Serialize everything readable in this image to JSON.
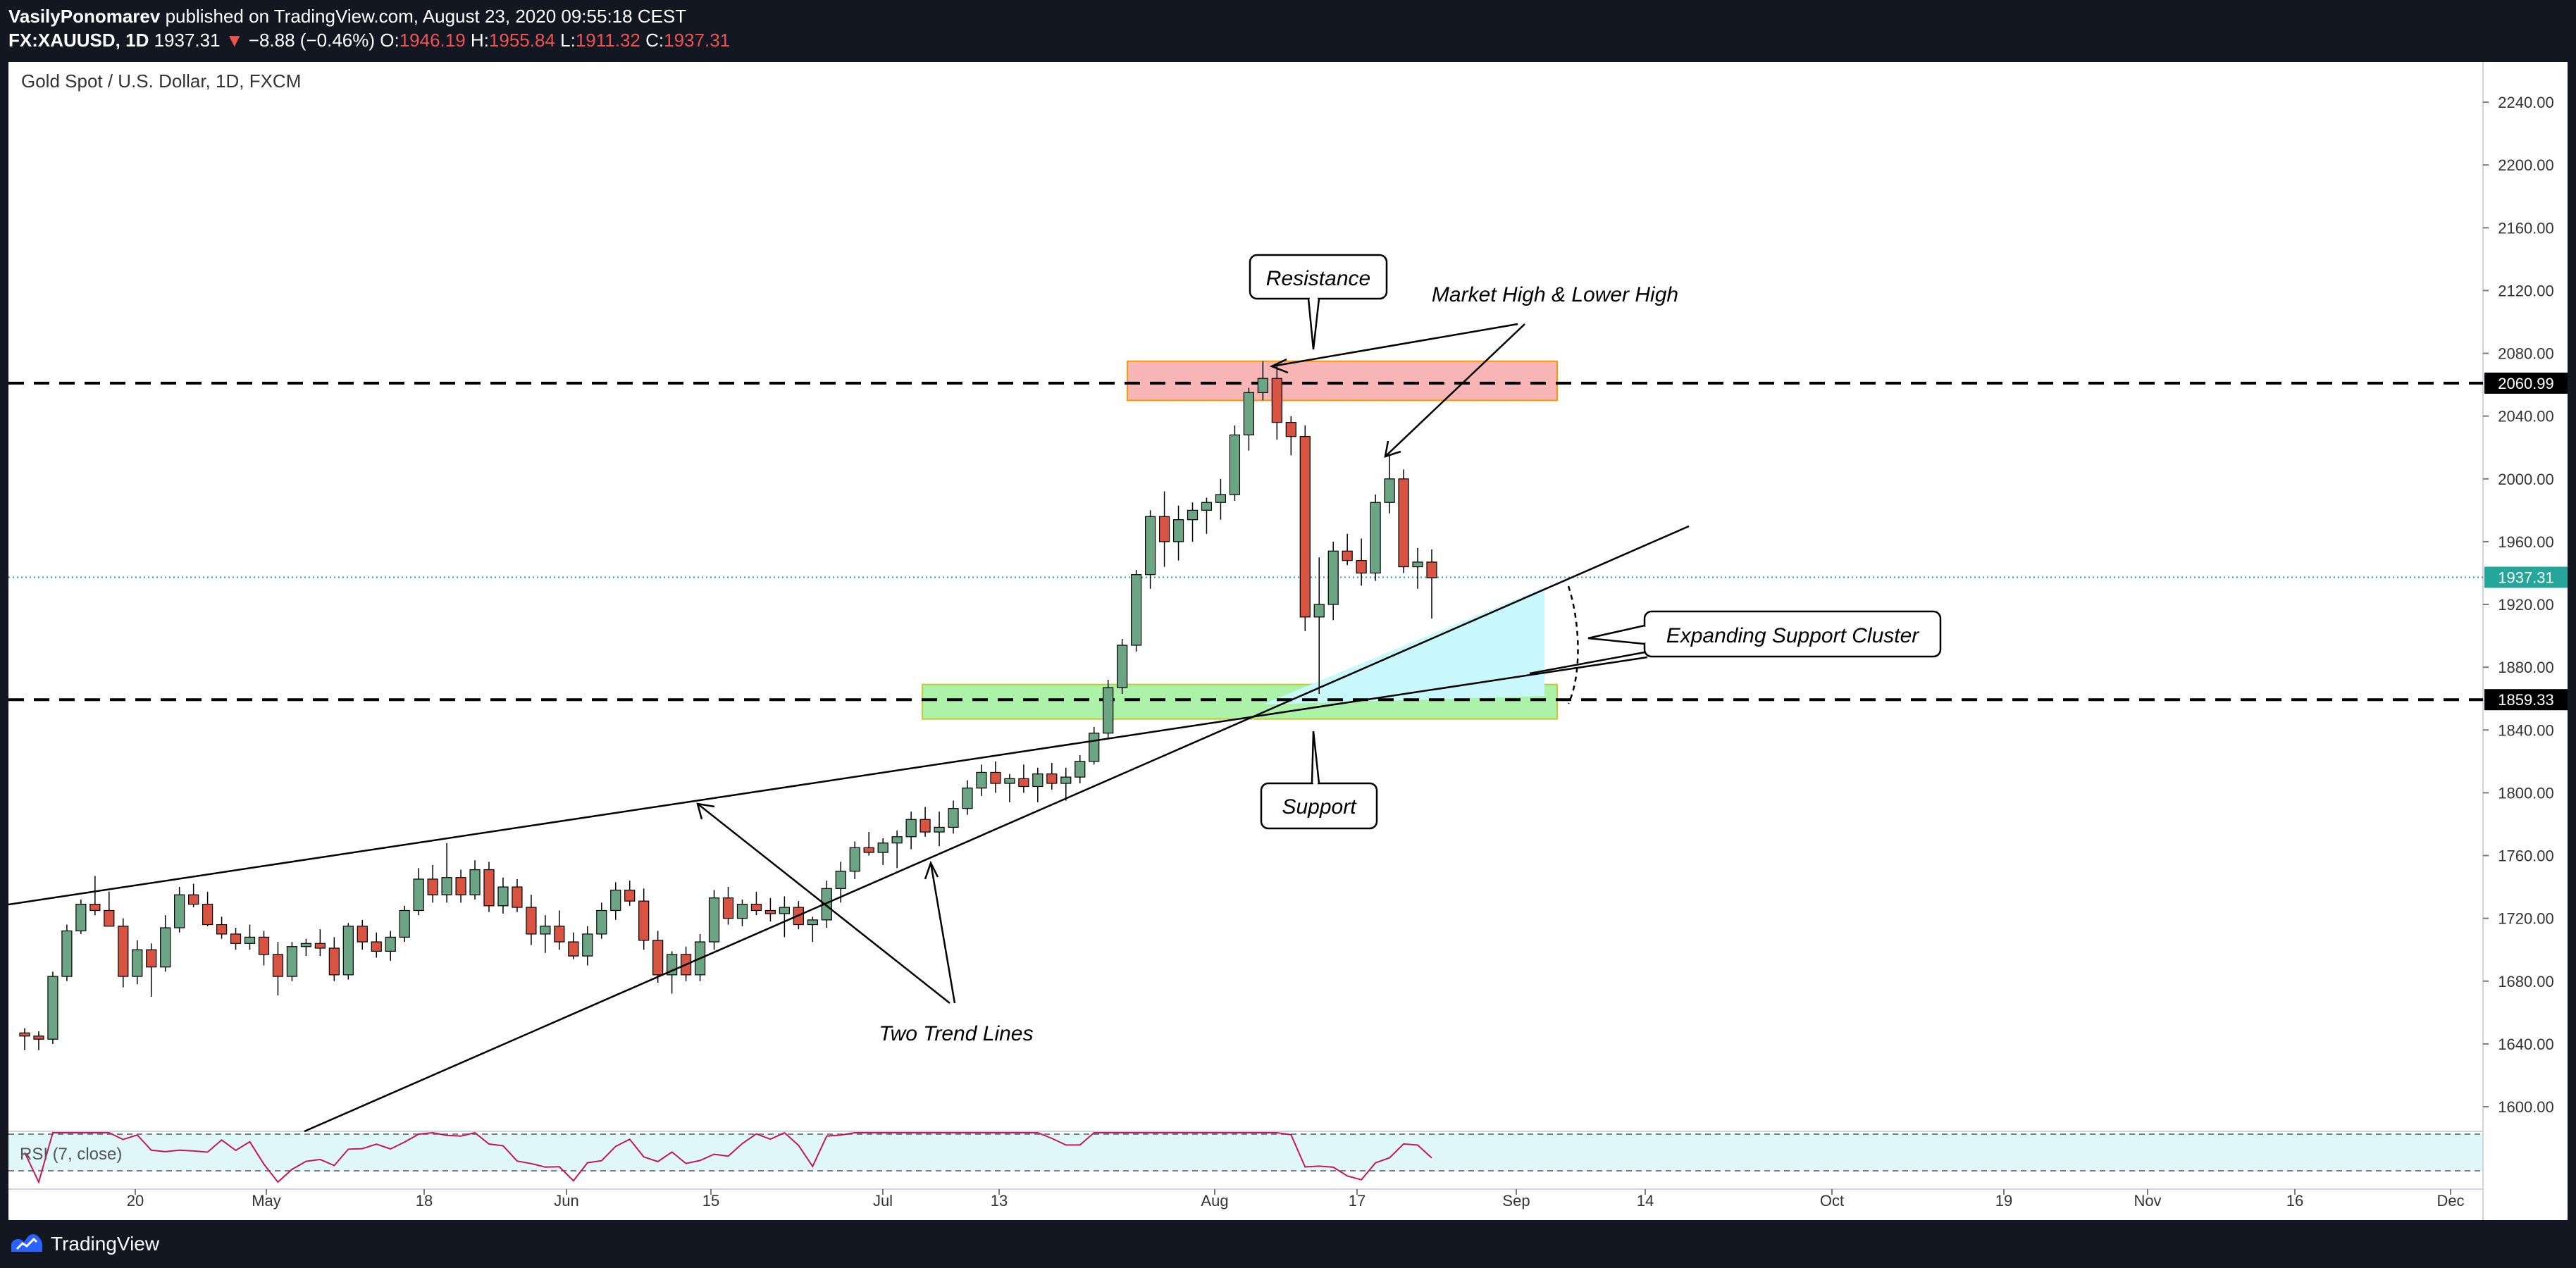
{
  "header": {
    "author": "VasilyPonomarev",
    "published_text": "published on TradingView.com, August 23, 2020 09:55:18 CEST",
    "symbol": "FX:XAUUSD, 1D",
    "last_price": "1937.31",
    "change": "−8.88 (−0.46%)",
    "open_label": "O:",
    "open": "1946.19",
    "high_label": "H:",
    "high": "1955.84",
    "low_label": "L:",
    "low": "1911.32",
    "close_label": "C:",
    "close": "1937.31"
  },
  "chart_title": "Gold Spot / U.S. Dollar, 1D, FXCM",
  "annotations": {
    "resistance": "Resistance",
    "market_high": "Market High & Lower High",
    "expanding": "Expanding Support Cluster",
    "support": "Support",
    "two_trend": "Two Trend Lines"
  },
  "rsi_label": "RSI (7, close)",
  "price_tags": {
    "upper": "2060.99",
    "current": "1937.31",
    "lower": "1859.33"
  },
  "colors": {
    "bull": "#6ba583",
    "bear": "#d75442",
    "resistance_zone": "#f7a8a8",
    "support_zone": "#9ef09a",
    "cluster": "#c8f8fb",
    "current_tag": "#26a69a",
    "rsi_line": "#c2185b",
    "rsi_band": "#e0f7fa"
  },
  "footer": {
    "brand": "TradingView",
    "logo_icon": "tradingview-logo-icon"
  },
  "chart_data": {
    "type": "candlestick",
    "title": "Gold Spot / U.S. Dollar, 1D, FXCM",
    "y_ticks": [
      1600,
      1640,
      1680,
      1720,
      1760,
      1800,
      1840,
      1880,
      1920,
      1960,
      2000,
      2040,
      2080,
      2120,
      2160,
      2200,
      2240
    ],
    "y_tick_labels": [
      "1600.00",
      "1640.00",
      "1680.00",
      "1720.00",
      "1760.00",
      "1800.00",
      "1840.00",
      "1880.00",
      "1920.00",
      "1960.00",
      "2000.00",
      "2040.00",
      "2080.00",
      "2120.00",
      "2160.00",
      "2200.00",
      "2240.00"
    ],
    "x_labels": [
      "20",
      "May",
      "18",
      "Jun",
      "15",
      "Jul",
      "13",
      "Aug",
      "17",
      "Sep",
      "14",
      "Oct",
      "19",
      "Nov",
      "16",
      "Dec"
    ],
    "horizontal_levels": [
      2060.99,
      1859.33
    ],
    "current_price": 1937.31,
    "resistance_zone": [
      2050,
      2075
    ],
    "support_zone": [
      1847,
      1869
    ],
    "candles": [
      [
        1647,
        1650,
        1636,
        1645
      ],
      [
        1645,
        1648,
        1636,
        1643
      ],
      [
        1643,
        1686,
        1640,
        1683
      ],
      [
        1683,
        1716,
        1680,
        1712
      ],
      [
        1712,
        1732,
        1710,
        1729
      ],
      [
        1729,
        1747,
        1722,
        1725
      ],
      [
        1725,
        1737,
        1715,
        1715
      ],
      [
        1715,
        1720,
        1676,
        1683
      ],
      [
        1683,
        1706,
        1678,
        1700
      ],
      [
        1700,
        1704,
        1670,
        1689
      ],
      [
        1689,
        1722,
        1686,
        1714
      ],
      [
        1714,
        1740,
        1711,
        1735
      ],
      [
        1735,
        1742,
        1727,
        1729
      ],
      [
        1729,
        1737,
        1715,
        1716
      ],
      [
        1716,
        1721,
        1707,
        1710
      ],
      [
        1710,
        1714,
        1700,
        1704
      ],
      [
        1704,
        1716,
        1700,
        1708
      ],
      [
        1708,
        1712,
        1690,
        1697
      ],
      [
        1697,
        1705,
        1671,
        1683
      ],
      [
        1683,
        1705,
        1680,
        1702
      ],
      [
        1702,
        1707,
        1696,
        1704
      ],
      [
        1704,
        1713,
        1696,
        1701
      ],
      [
        1701,
        1708,
        1680,
        1684
      ],
      [
        1684,
        1717,
        1681,
        1715
      ],
      [
        1715,
        1719,
        1700,
        1705
      ],
      [
        1705,
        1711,
        1695,
        1699
      ],
      [
        1699,
        1712,
        1693,
        1708
      ],
      [
        1708,
        1728,
        1705,
        1725
      ],
      [
        1725,
        1752,
        1722,
        1745
      ],
      [
        1745,
        1754,
        1730,
        1735
      ],
      [
        1735,
        1768,
        1730,
        1746
      ],
      [
        1746,
        1751,
        1730,
        1735
      ],
      [
        1735,
        1757,
        1732,
        1751
      ],
      [
        1751,
        1756,
        1724,
        1728
      ],
      [
        1728,
        1746,
        1723,
        1740
      ],
      [
        1740,
        1745,
        1724,
        1727
      ],
      [
        1727,
        1735,
        1703,
        1710
      ],
      [
        1710,
        1722,
        1698,
        1715
      ],
      [
        1715,
        1725,
        1700,
        1705
      ],
      [
        1705,
        1711,
        1694,
        1696
      ],
      [
        1696,
        1715,
        1690,
        1710
      ],
      [
        1710,
        1730,
        1707,
        1725
      ],
      [
        1725,
        1743,
        1719,
        1738
      ],
      [
        1738,
        1744,
        1728,
        1731
      ],
      [
        1731,
        1739,
        1700,
        1706
      ],
      [
        1706,
        1712,
        1679,
        1684
      ],
      [
        1684,
        1699,
        1672,
        1697
      ],
      [
        1697,
        1702,
        1680,
        1684
      ],
      [
        1684,
        1710,
        1680,
        1705
      ],
      [
        1705,
        1738,
        1700,
        1733
      ],
      [
        1733,
        1740,
        1716,
        1720
      ],
      [
        1720,
        1732,
        1715,
        1729
      ],
      [
        1729,
        1737,
        1722,
        1725
      ],
      [
        1725,
        1733,
        1718,
        1723
      ],
      [
        1723,
        1734,
        1708,
        1727
      ],
      [
        1727,
        1731,
        1713,
        1716
      ],
      [
        1716,
        1721,
        1705,
        1719
      ],
      [
        1719,
        1744,
        1714,
        1739
      ],
      [
        1739,
        1756,
        1730,
        1750
      ],
      [
        1750,
        1769,
        1745,
        1765
      ],
      [
        1765,
        1775,
        1760,
        1762
      ],
      [
        1762,
        1771,
        1754,
        1768
      ],
      [
        1768,
        1776,
        1752,
        1772
      ],
      [
        1772,
        1788,
        1764,
        1783
      ],
      [
        1783,
        1791,
        1772,
        1775
      ],
      [
        1775,
        1788,
        1766,
        1778
      ],
      [
        1778,
        1795,
        1774,
        1790
      ],
      [
        1790,
        1808,
        1786,
        1803
      ],
      [
        1803,
        1818,
        1798,
        1813
      ],
      [
        1813,
        1820,
        1800,
        1806
      ],
      [
        1806,
        1812,
        1794,
        1809
      ],
      [
        1809,
        1818,
        1800,
        1804
      ],
      [
        1804,
        1816,
        1794,
        1812
      ],
      [
        1812,
        1819,
        1802,
        1806
      ],
      [
        1806,
        1816,
        1795,
        1810
      ],
      [
        1810,
        1824,
        1806,
        1820
      ],
      [
        1820,
        1842,
        1818,
        1838
      ],
      [
        1838,
        1872,
        1835,
        1867
      ],
      [
        1867,
        1898,
        1863,
        1894
      ],
      [
        1894,
        1942,
        1890,
        1939
      ],
      [
        1939,
        1980,
        1930,
        1976
      ],
      [
        1976,
        1992,
        1944,
        1960
      ],
      [
        1960,
        1983,
        1948,
        1974
      ],
      [
        1974,
        1985,
        1960,
        1980
      ],
      [
        1980,
        1988,
        1965,
        1985
      ],
      [
        1985,
        2000,
        1974,
        1990
      ],
      [
        1990,
        2034,
        1986,
        2028
      ],
      [
        2028,
        2058,
        2018,
        2055
      ],
      [
        2055,
        2075,
        2050,
        2064
      ],
      [
        2064,
        2072,
        2025,
        2036
      ],
      [
        2036,
        2040,
        2015,
        2027
      ],
      [
        2027,
        2034,
        1903,
        1912
      ],
      [
        1912,
        1950,
        1863,
        1920
      ],
      [
        1920,
        1960,
        1910,
        1954
      ],
      [
        1954,
        1965,
        1945,
        1948
      ],
      [
        1948,
        1962,
        1932,
        1940
      ],
      [
        1940,
        1990,
        1935,
        1985
      ],
      [
        1985,
        2015,
        1978,
        2000
      ],
      [
        2000,
        2006,
        1940,
        1944
      ],
      [
        1944,
        1956,
        1930,
        1947
      ],
      [
        1947,
        1955,
        1911,
        1937
      ]
    ]
  }
}
